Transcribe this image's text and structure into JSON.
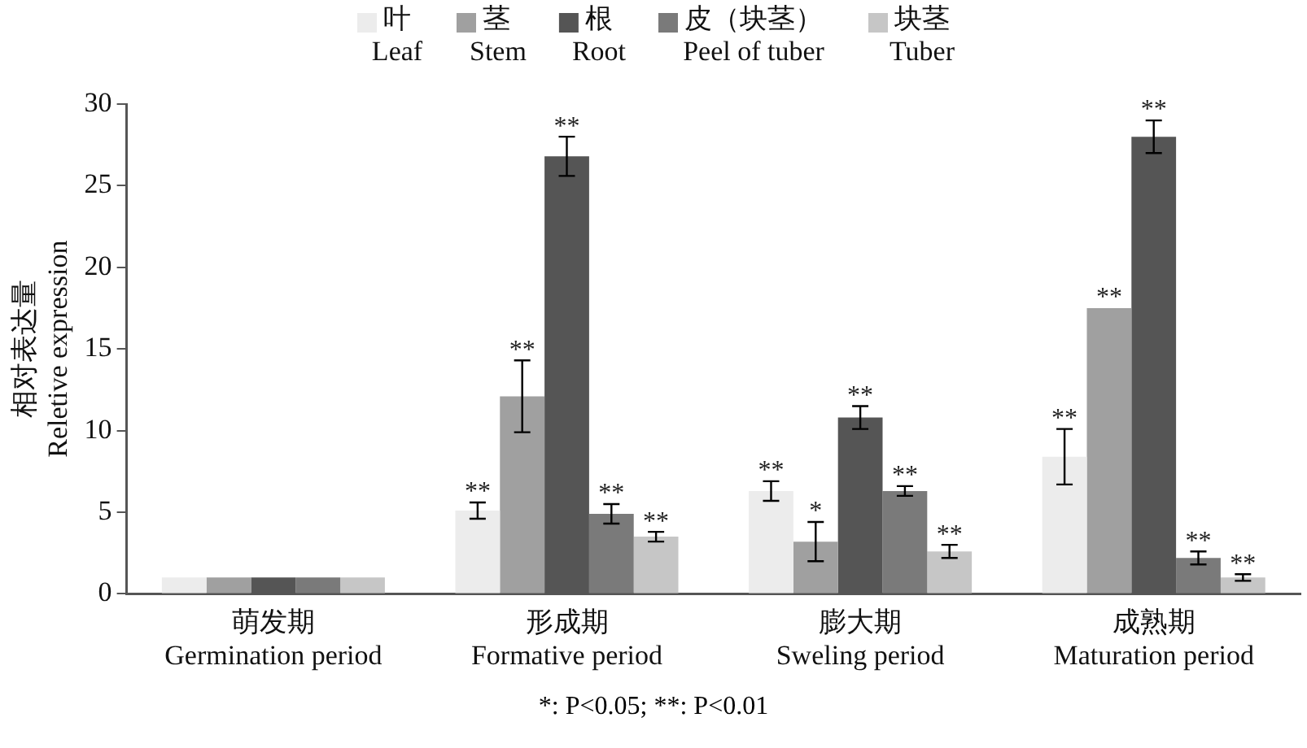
{
  "chart_data": {
    "type": "bar",
    "categories": [
      "萌发期\nGermination period",
      "形成期\nFormative period",
      "膨大期\nSweling period",
      "成熟期\nMaturation period"
    ],
    "ylabel": "相对表达量\nReletive expression",
    "ylim": [
      0,
      30
    ],
    "yticks": [
      0,
      5,
      10,
      15,
      20,
      25,
      30
    ],
    "grid": false,
    "legend": "top",
    "series": [
      {
        "name": "叶\nLeaf",
        "color": "#ececec",
        "values": [
          1,
          5.1,
          6.3,
          8.4
        ],
        "errors": [
          null,
          0.5,
          0.6,
          1.7
        ],
        "value_labels": [
          null,
          "**",
          "**",
          "**"
        ]
      },
      {
        "name": "茎\nStem",
        "color": "#a0a0a0",
        "values": [
          1,
          12.1,
          3.2,
          17.5
        ],
        "errors": [
          null,
          2.2,
          1.2,
          null
        ],
        "value_labels": [
          null,
          "**",
          "*",
          "**"
        ]
      },
      {
        "name": "根\nRoot",
        "color": "#555555",
        "values": [
          1,
          26.8,
          10.8,
          28
        ],
        "errors": [
          null,
          1.2,
          0.7,
          1
        ],
        "value_labels": [
          null,
          "**",
          "**",
          "**"
        ]
      },
      {
        "name": "皮（块茎）\nPeel of tuber",
        "color": "#7a7a7a",
        "values": [
          1,
          4.9,
          6.3,
          2.2
        ],
        "errors": [
          null,
          0.6,
          0.3,
          0.4
        ],
        "value_labels": [
          null,
          "**",
          "**",
          "**"
        ]
      },
      {
        "name": "块茎\nTuber",
        "color": "#c6c6c6",
        "values": [
          1,
          3.5,
          2.6,
          1
        ],
        "errors": [
          null,
          0.3,
          0.4,
          0.2
        ],
        "value_labels": [
          null,
          "**",
          "**",
          "**"
        ]
      }
    ],
    "annotations": [
      "*: P<0.05; **: P<0.01"
    ]
  }
}
